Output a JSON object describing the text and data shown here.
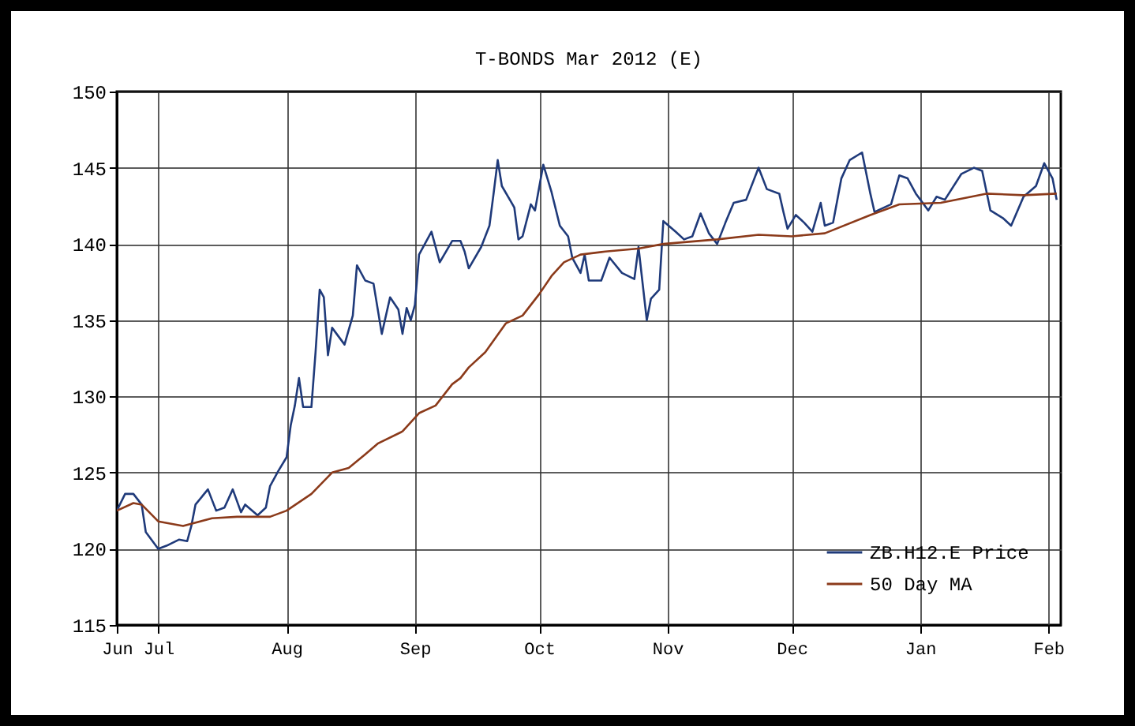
{
  "chart_data": {
    "type": "line",
    "title": "T-BONDS Mar 2012 (E)",
    "xlim": [
      "2011-06-21",
      "2012-02-04"
    ],
    "xticks": [
      {
        "value": "2011-06-21",
        "label": "Jun"
      },
      {
        "value": "2011-07-01",
        "label": "Jul"
      },
      {
        "value": "2011-08-01",
        "label": "Aug"
      },
      {
        "value": "2011-09-01",
        "label": "Sep"
      },
      {
        "value": "2011-10-01",
        "label": "Oct"
      },
      {
        "value": "2011-11-01",
        "label": "Nov"
      },
      {
        "value": "2011-12-01",
        "label": "Dec"
      },
      {
        "value": "2012-01-01",
        "label": "Jan"
      },
      {
        "value": "2012-02-01",
        "label": "Feb"
      }
    ],
    "ylim": [
      115,
      150
    ],
    "yticks": [
      115,
      120,
      125,
      130,
      135,
      140,
      145,
      150
    ],
    "grid": true,
    "legend": "bottom right",
    "series": [
      {
        "name": "ZB.H12.E Price",
        "color": "#1f3a7a",
        "x": [
          "2011-06-21",
          "2011-06-23",
          "2011-06-25",
          "2011-06-27",
          "2011-06-28",
          "2011-07-01",
          "2011-07-03",
          "2011-07-06",
          "2011-07-08",
          "2011-07-09",
          "2011-07-10",
          "2011-07-13",
          "2011-07-15",
          "2011-07-17",
          "2011-07-19",
          "2011-07-21",
          "2011-07-22",
          "2011-07-25",
          "2011-07-27",
          "2011-07-28",
          "2011-07-30",
          "2011-08-01",
          "2011-08-02",
          "2011-08-03",
          "2011-08-04",
          "2011-08-05",
          "2011-08-07",
          "2011-08-08",
          "2011-08-09",
          "2011-08-10",
          "2011-08-11",
          "2011-08-12",
          "2011-08-15",
          "2011-08-17",
          "2011-08-18",
          "2011-08-20",
          "2011-08-22",
          "2011-08-24",
          "2011-08-26",
          "2011-08-28",
          "2011-08-29",
          "2011-08-30",
          "2011-08-31",
          "2011-09-01",
          "2011-09-02",
          "2011-09-05",
          "2011-09-07",
          "2011-09-10",
          "2011-09-12",
          "2011-09-13",
          "2011-09-14",
          "2011-09-17",
          "2011-09-19",
          "2011-09-20",
          "2011-09-21",
          "2011-09-22",
          "2011-09-25",
          "2011-09-26",
          "2011-09-27",
          "2011-09-29",
          "2011-09-30",
          "2011-10-02",
          "2011-10-04",
          "2011-10-06",
          "2011-10-08",
          "2011-10-09",
          "2011-10-11",
          "2011-10-12",
          "2011-10-13",
          "2011-10-16",
          "2011-10-18",
          "2011-10-21",
          "2011-10-24",
          "2011-10-25",
          "2011-10-27",
          "2011-10-28",
          "2011-10-30",
          "2011-10-31",
          "2011-11-03",
          "2011-11-05",
          "2011-11-07",
          "2011-11-09",
          "2011-11-11",
          "2011-11-13",
          "2011-11-15",
          "2011-11-17",
          "2011-11-20",
          "2011-11-23",
          "2011-11-25",
          "2011-11-28",
          "2011-11-29",
          "2011-11-30",
          "2011-12-02",
          "2011-12-04",
          "2011-12-06",
          "2011-12-08",
          "2011-12-09",
          "2011-12-11",
          "2011-12-13",
          "2011-12-15",
          "2011-12-18",
          "2011-12-20",
          "2011-12-21",
          "2011-12-25",
          "2011-12-27",
          "2011-12-29",
          "2011-12-31",
          "2012-01-03",
          "2012-01-05",
          "2012-01-07",
          "2012-01-11",
          "2012-01-14",
          "2012-01-16",
          "2012-01-18",
          "2012-01-21",
          "2012-01-23",
          "2012-01-26",
          "2012-01-29",
          "2012-01-31",
          "2012-02-02",
          "2012-02-03"
        ],
        "values": [
          122.5,
          123.6,
          123.6,
          122.9,
          121.1,
          120.0,
          120.2,
          120.6,
          120.5,
          121.5,
          122.9,
          123.9,
          122.5,
          122.7,
          123.9,
          122.4,
          122.9,
          122.2,
          122.7,
          124.1,
          125.1,
          126.0,
          128.1,
          129.4,
          131.2,
          129.3,
          129.3,
          132.9,
          137.0,
          136.5,
          132.7,
          134.5,
          133.4,
          135.3,
          138.6,
          137.6,
          137.4,
          134.1,
          136.5,
          135.7,
          134.1,
          135.8,
          135.0,
          136.0,
          139.3,
          140.8,
          138.8,
          140.2,
          140.2,
          139.5,
          138.4,
          139.8,
          141.2,
          143.3,
          145.5,
          143.8,
          142.4,
          140.3,
          140.5,
          142.6,
          142.2,
          145.2,
          143.4,
          141.2,
          140.5,
          139.1,
          138.1,
          139.3,
          137.6,
          137.6,
          139.1,
          138.1,
          137.7,
          139.8,
          135.0,
          136.4,
          137.0,
          141.5,
          140.8,
          140.3,
          140.5,
          142.0,
          140.7,
          140.0,
          141.4,
          142.7,
          142.9,
          145.0,
          143.6,
          143.3,
          142.1,
          141.0,
          141.9,
          141.4,
          140.8,
          142.7,
          141.2,
          141.4,
          144.3,
          145.5,
          146.0,
          143.3,
          142.1,
          142.6,
          144.5,
          144.3,
          143.3,
          142.2,
          143.1,
          142.9,
          144.6,
          145.0,
          144.8,
          142.2,
          141.7,
          141.2,
          143.1,
          143.8,
          145.3,
          144.3,
          142.9
        ]
      },
      {
        "name": "50 Day MA",
        "color": "#8b3a1a",
        "x": [
          "2011-06-21",
          "2011-06-25",
          "2011-06-27",
          "2011-07-01",
          "2011-07-07",
          "2011-07-14",
          "2011-07-20",
          "2011-07-28",
          "2011-08-01",
          "2011-08-07",
          "2011-08-12",
          "2011-08-16",
          "2011-08-20",
          "2011-08-23",
          "2011-08-29",
          "2011-09-02",
          "2011-09-06",
          "2011-09-10",
          "2011-09-12",
          "2011-09-14",
          "2011-09-18",
          "2011-09-23",
          "2011-09-27",
          "2011-10-01",
          "2011-10-04",
          "2011-10-07",
          "2011-10-11",
          "2011-10-17",
          "2011-10-25",
          "2011-10-31",
          "2011-11-13",
          "2011-11-23",
          "2011-12-01",
          "2011-12-09",
          "2011-12-20",
          "2011-12-27",
          "2012-01-06",
          "2012-01-17",
          "2012-01-26",
          "2012-02-03"
        ],
        "values": [
          122.5,
          123.0,
          122.9,
          121.8,
          121.5,
          122.0,
          122.1,
          122.1,
          122.5,
          123.6,
          125.0,
          125.3,
          126.2,
          126.9,
          127.7,
          128.9,
          129.4,
          130.8,
          131.2,
          131.9,
          132.9,
          134.8,
          135.3,
          136.7,
          137.9,
          138.8,
          139.3,
          139.5,
          139.7,
          140.0,
          140.3,
          140.6,
          140.5,
          140.7,
          141.9,
          142.6,
          142.7,
          143.3,
          143.2,
          143.3
        ]
      }
    ]
  }
}
